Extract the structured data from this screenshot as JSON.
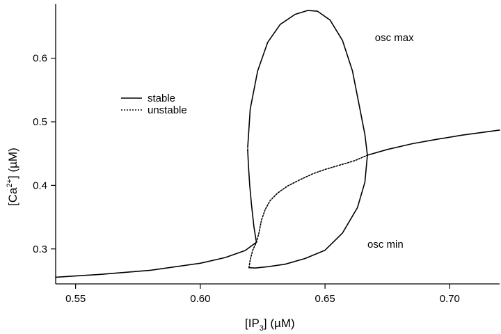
{
  "chart_data": {
    "type": "line",
    "title": "",
    "xlabel": {
      "main": "[IP",
      "sub": "3",
      "unit": "] (µM)"
    },
    "ylabel": {
      "main": "[Ca",
      "sup": "2+",
      "unit": "] (µM)"
    },
    "xlim": [
      0.542,
      0.72
    ],
    "ylim": [
      0.245,
      0.685
    ],
    "xticks": [
      0.55,
      0.6,
      0.65,
      0.7
    ],
    "xtick_labels": [
      "0.55",
      "0.60",
      "0.65",
      "0.70"
    ],
    "yticks": [
      0.3,
      0.4,
      0.5,
      0.6
    ],
    "ytick_labels": [
      "0.3",
      "0.4",
      "0.5",
      "0.6"
    ],
    "grid": false,
    "legend": {
      "position": "upper-left",
      "entries": [
        {
          "label": "stable",
          "style": "solid"
        },
        {
          "label": "unstable",
          "style": "dotted"
        }
      ]
    },
    "annotations": [
      {
        "text": "osc max",
        "x": 0.67,
        "y": 0.627
      },
      {
        "text": "osc min",
        "x": 0.667,
        "y": 0.302
      }
    ],
    "series": [
      {
        "style": "solid",
        "x": [
          0.542,
          0.56,
          0.58,
          0.6,
          0.61,
          0.618,
          0.6225
        ],
        "y": [
          0.2555,
          0.26,
          0.2665,
          0.2775,
          0.2865,
          0.2975,
          0.3105
        ]
      },
      {
        "style": "dotted",
        "x": [
          0.6225,
          0.6235,
          0.6245,
          0.626,
          0.628,
          0.631,
          0.635,
          0.64,
          0.645,
          0.65,
          0.656,
          0.662,
          0.667
        ],
        "y": [
          0.3105,
          0.325,
          0.345,
          0.362,
          0.376,
          0.388,
          0.399,
          0.409,
          0.418,
          0.425,
          0.432,
          0.439,
          0.4475
        ]
      },
      {
        "style": "solid",
        "x": [
          0.667,
          0.675,
          0.685,
          0.695,
          0.705,
          0.72
        ],
        "y": [
          0.4475,
          0.4565,
          0.4655,
          0.4725,
          0.479,
          0.487
        ]
      },
      {
        "style": "solid",
        "x": [
          0.619,
          0.62,
          0.623,
          0.627,
          0.632,
          0.638,
          0.643,
          0.647,
          0.652,
          0.657,
          0.661,
          0.664,
          0.666,
          0.667
        ],
        "y": [
          0.46,
          0.52,
          0.58,
          0.625,
          0.653,
          0.669,
          0.675,
          0.674,
          0.66,
          0.628,
          0.58,
          0.52,
          0.48,
          0.4475
        ]
      },
      {
        "style": "solid",
        "x": [
          0.667,
          0.666,
          0.663,
          0.657,
          0.65,
          0.642,
          0.634,
          0.627,
          0.622,
          0.6195
        ],
        "y": [
          0.4475,
          0.405,
          0.365,
          0.325,
          0.298,
          0.285,
          0.276,
          0.272,
          0.27,
          0.2705
        ]
      },
      {
        "style": "dotted",
        "x": [
          0.6195,
          0.62,
          0.621,
          0.6225
        ],
        "y": [
          0.2705,
          0.283,
          0.298,
          0.3105
        ]
      },
      {
        "style": "solid",
        "x": [
          0.6225,
          0.6215,
          0.6205,
          0.6198,
          0.6193,
          0.619
        ],
        "y": [
          0.3105,
          0.335,
          0.37,
          0.4,
          0.43,
          0.455
        ]
      },
      {
        "style": "dotted",
        "x": [
          0.619,
          0.619
        ],
        "y": [
          0.455,
          0.46
        ]
      }
    ]
  }
}
